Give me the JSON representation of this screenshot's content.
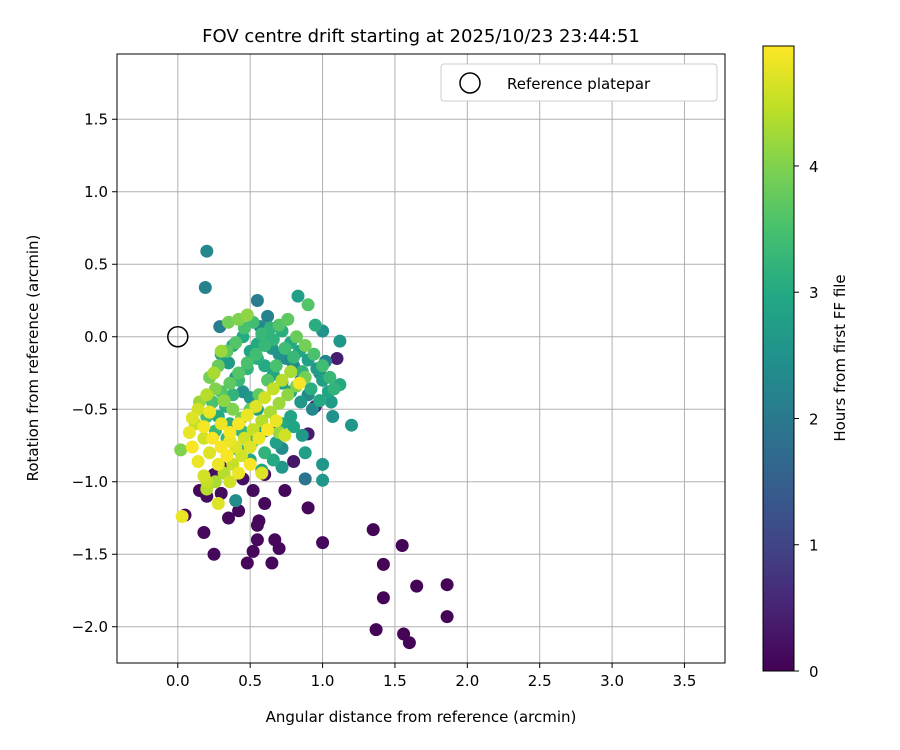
{
  "chart_data": {
    "type": "scatter",
    "title": "FOV centre drift starting at 2025/10/23 23:44:51",
    "xlabel": "Angular distance from reference (arcmin)",
    "ylabel": "Rotation from reference (arcmin)",
    "xlim": [
      -0.42,
      3.78
    ],
    "ylim": [
      -2.25,
      1.95
    ],
    "xticks": [
      0.0,
      0.5,
      1.0,
      1.5,
      2.0,
      2.5,
      3.0,
      3.5
    ],
    "xtick_labels": [
      "0.0",
      "0.5",
      "1.0",
      "1.5",
      "2.0",
      "2.5",
      "3.0",
      "3.5"
    ],
    "yticks": [
      -2.0,
      -1.5,
      -1.0,
      -0.5,
      0.0,
      0.5,
      1.0,
      1.5
    ],
    "ytick_labels": [
      "−2.0",
      "−1.5",
      "−1.0",
      "−0.5",
      "0.0",
      "0.5",
      "1.0",
      "1.5"
    ],
    "grid": true,
    "legend": {
      "placement": "top-right",
      "entries": [
        "Reference platepar"
      ]
    },
    "reference": {
      "x": 0.0,
      "y": 0.0
    },
    "colorbar": {
      "label": "Hours from first FF file",
      "colormap": "viridis",
      "range": [
        0,
        4.95
      ],
      "ticks": [
        0,
        1,
        2,
        3,
        4
      ],
      "tick_labels": [
        "0",
        "1",
        "2",
        "3",
        "4"
      ]
    },
    "points": [
      [
        1.35,
        -1.33,
        0.05
      ],
      [
        1.55,
        -1.44,
        0.05
      ],
      [
        1.42,
        -1.57,
        0.05
      ],
      [
        1.65,
        -1.72,
        0.05
      ],
      [
        1.86,
        -1.71,
        0.05
      ],
      [
        1.42,
        -1.8,
        0.05
      ],
      [
        1.86,
        -1.93,
        0.05
      ],
      [
        1.37,
        -2.02,
        0.05
      ],
      [
        1.56,
        -2.05,
        0.05
      ],
      [
        1.6,
        -2.11,
        0.05
      ],
      [
        0.05,
        -1.23,
        0.1
      ],
      [
        0.15,
        -1.06,
        0.1
      ],
      [
        0.18,
        -1.35,
        0.1
      ],
      [
        0.25,
        -1.5,
        0.1
      ],
      [
        0.35,
        -1.25,
        0.1
      ],
      [
        0.42,
        -1.2,
        0.1
      ],
      [
        0.48,
        -1.56,
        0.1
      ],
      [
        0.52,
        -1.48,
        0.1
      ],
      [
        0.55,
        -1.4,
        0.1
      ],
      [
        0.56,
        -1.27,
        0.1
      ],
      [
        0.55,
        -1.3,
        0.1
      ],
      [
        0.65,
        -1.56,
        0.1
      ],
      [
        0.7,
        -1.46,
        0.1
      ],
      [
        0.67,
        -1.4,
        0.1
      ],
      [
        0.6,
        -1.15,
        0.1
      ],
      [
        0.74,
        -1.06,
        0.1
      ],
      [
        0.9,
        -1.18,
        0.1
      ],
      [
        1.0,
        -1.42,
        0.1
      ],
      [
        0.52,
        -1.06,
        0.15
      ],
      [
        0.3,
        -1.08,
        0.15
      ],
      [
        0.2,
        -1.1,
        0.15
      ],
      [
        0.25,
        -0.95,
        0.2
      ],
      [
        0.3,
        -0.9,
        0.2
      ],
      [
        0.45,
        -0.98,
        0.2
      ],
      [
        0.6,
        -0.95,
        0.2
      ],
      [
        0.8,
        -0.86,
        0.3
      ],
      [
        0.7,
        -0.62,
        0.4
      ],
      [
        0.9,
        -0.67,
        0.4
      ],
      [
        1.1,
        -0.15,
        0.4
      ],
      [
        0.95,
        -0.48,
        0.5
      ],
      [
        0.88,
        -0.98,
        1.9
      ],
      [
        1.0,
        -0.99,
        2.6
      ],
      [
        1.0,
        -0.88,
        2.6
      ],
      [
        0.4,
        -1.13,
        2.4
      ],
      [
        0.72,
        -0.77,
        2.4
      ],
      [
        0.72,
        -0.9,
        2.6
      ],
      [
        0.2,
        0.59,
        2.3
      ],
      [
        0.19,
        0.34,
        2.2
      ],
      [
        0.29,
        0.07,
        2.1
      ],
      [
        0.55,
        0.25,
        2.1
      ],
      [
        0.62,
        0.14,
        2.2
      ],
      [
        0.57,
        0.07,
        2.3
      ],
      [
        0.83,
        0.28,
        2.8
      ],
      [
        0.9,
        0.22,
        3.6
      ],
      [
        0.95,
        0.08,
        3.1
      ],
      [
        1.0,
        0.04,
        2.5
      ],
      [
        1.12,
        -0.03,
        2.6
      ],
      [
        1.2,
        -0.61,
        2.6
      ],
      [
        1.07,
        -0.55,
        2.5
      ],
      [
        1.12,
        -0.33,
        3.0
      ],
      [
        1.06,
        -0.45,
        2.7
      ],
      [
        1.02,
        -0.17,
        2.2
      ],
      [
        0.98,
        -0.25,
        2.4
      ],
      [
        0.93,
        -0.5,
        2.3
      ],
      [
        0.86,
        -0.68,
        2.7
      ],
      [
        0.88,
        -0.8,
        2.8
      ],
      [
        0.8,
        -0.62,
        2.9
      ],
      [
        0.78,
        -0.55,
        2.9
      ],
      [
        0.72,
        -0.6,
        3.0
      ],
      [
        0.68,
        -0.73,
        2.8
      ],
      [
        0.6,
        -0.65,
        2.8
      ],
      [
        0.55,
        -0.5,
        2.7
      ],
      [
        0.5,
        -0.42,
        2.6
      ],
      [
        0.45,
        -0.38,
        2.5
      ],
      [
        0.4,
        -0.28,
        2.6
      ],
      [
        0.35,
        -0.18,
        2.7
      ],
      [
        0.3,
        -0.12,
        2.8
      ],
      [
        0.38,
        -0.06,
        2.9
      ],
      [
        0.45,
        0.0,
        3.0
      ],
      [
        0.5,
        -0.1,
        2.9
      ],
      [
        0.55,
        -0.05,
        3.0
      ],
      [
        0.6,
        0.0,
        2.8
      ],
      [
        0.65,
        -0.08,
        2.6
      ],
      [
        0.7,
        -0.12,
        2.5
      ],
      [
        0.75,
        -0.15,
        2.4
      ],
      [
        0.8,
        -0.2,
        2.3
      ],
      [
        0.85,
        -0.3,
        2.2
      ],
      [
        0.9,
        -0.4,
        2.3
      ],
      [
        0.85,
        -0.45,
        2.6
      ],
      [
        0.78,
        -0.38,
        2.7
      ],
      [
        0.72,
        -0.32,
        2.8
      ],
      [
        0.66,
        -0.26,
        2.9
      ],
      [
        0.6,
        -0.2,
        3.0
      ],
      [
        0.55,
        -0.15,
        3.1
      ],
      [
        0.48,
        -0.22,
        3.2
      ],
      [
        0.42,
        -0.3,
        3.3
      ],
      [
        0.38,
        -0.4,
        3.2
      ],
      [
        0.33,
        -0.48,
        3.1
      ],
      [
        0.28,
        -0.55,
        3.0
      ],
      [
        0.36,
        -0.6,
        3.1
      ],
      [
        0.44,
        -0.65,
        3.2
      ],
      [
        0.52,
        -0.72,
        3.3
      ],
      [
        0.6,
        -0.8,
        3.2
      ],
      [
        0.66,
        -0.85,
        3.0
      ],
      [
        0.58,
        -0.92,
        2.9
      ],
      [
        0.5,
        -0.85,
        3.0
      ],
      [
        0.42,
        -0.78,
        3.1
      ],
      [
        0.34,
        -0.7,
        3.2
      ],
      [
        0.26,
        -0.65,
        3.3
      ],
      [
        0.2,
        -0.55,
        3.4
      ],
      [
        0.24,
        -0.45,
        3.5
      ],
      [
        0.3,
        -0.38,
        3.6
      ],
      [
        0.36,
        -0.32,
        3.7
      ],
      [
        0.42,
        -0.25,
        3.6
      ],
      [
        0.48,
        -0.18,
        3.5
      ],
      [
        0.54,
        -0.12,
        3.4
      ],
      [
        0.6,
        -0.06,
        3.3
      ],
      [
        0.66,
        -0.02,
        3.2
      ],
      [
        0.72,
        0.04,
        3.1
      ],
      [
        0.78,
        -0.04,
        3.0
      ],
      [
        0.84,
        -0.1,
        2.9
      ],
      [
        0.9,
        -0.16,
        2.8
      ],
      [
        0.96,
        -0.22,
        2.7
      ],
      [
        1.0,
        -0.3,
        2.8
      ],
      [
        1.04,
        -0.38,
        2.9
      ],
      [
        0.98,
        -0.44,
        3.0
      ],
      [
        0.92,
        -0.36,
        3.1
      ],
      [
        0.86,
        -0.24,
        3.2
      ],
      [
        0.8,
        -0.14,
        3.3
      ],
      [
        0.74,
        -0.08,
        3.4
      ],
      [
        0.68,
        -0.2,
        3.5
      ],
      [
        0.62,
        -0.3,
        3.6
      ],
      [
        0.56,
        -0.4,
        3.7
      ],
      [
        0.5,
        -0.5,
        3.8
      ],
      [
        0.44,
        -0.56,
        3.9
      ],
      [
        0.38,
        -0.5,
        4.0
      ],
      [
        0.32,
        -0.44,
        4.1
      ],
      [
        0.26,
        -0.36,
        4.0
      ],
      [
        0.22,
        -0.28,
        3.9
      ],
      [
        0.28,
        -0.2,
        3.8
      ],
      [
        0.34,
        -0.1,
        3.7
      ],
      [
        0.4,
        -0.04,
        3.6
      ],
      [
        0.46,
        0.06,
        3.5
      ],
      [
        0.52,
        0.1,
        3.4
      ],
      [
        0.58,
        0.02,
        3.3
      ],
      [
        0.64,
        0.06,
        3.2
      ],
      [
        0.7,
        0.08,
        3.6
      ],
      [
        0.76,
        0.12,
        3.7
      ],
      [
        0.82,
        0.0,
        3.8
      ],
      [
        0.88,
        -0.06,
        3.9
      ],
      [
        0.94,
        -0.12,
        3.5
      ],
      [
        1.0,
        -0.2,
        3.4
      ],
      [
        1.05,
        -0.28,
        3.3
      ],
      [
        1.08,
        -0.36,
        3.2
      ],
      [
        0.35,
        0.1,
        3.9
      ],
      [
        0.42,
        0.12,
        4.0
      ],
      [
        0.48,
        0.15,
        4.1
      ],
      [
        0.3,
        -0.1,
        4.2
      ],
      [
        0.25,
        -0.25,
        4.3
      ],
      [
        0.2,
        -0.4,
        4.4
      ],
      [
        0.15,
        -0.45,
        4.2
      ],
      [
        0.12,
        -0.6,
        4.5
      ],
      [
        0.18,
        -0.7,
        4.6
      ],
      [
        0.22,
        -0.8,
        4.7
      ],
      [
        0.28,
        -0.88,
        4.8
      ],
      [
        0.34,
        -0.82,
        4.9
      ],
      [
        0.4,
        -0.76,
        4.7
      ],
      [
        0.46,
        -0.7,
        4.6
      ],
      [
        0.52,
        -0.64,
        4.5
      ],
      [
        0.58,
        -0.58,
        4.4
      ],
      [
        0.64,
        -0.52,
        4.3
      ],
      [
        0.7,
        -0.46,
        4.2
      ],
      [
        0.76,
        -0.4,
        4.1
      ],
      [
        0.82,
        -0.34,
        4.0
      ],
      [
        0.88,
        -0.28,
        3.9
      ],
      [
        0.7,
        -0.66,
        4.2
      ],
      [
        0.74,
        -0.68,
        4.6
      ],
      [
        0.68,
        -0.58,
        4.8
      ],
      [
        0.62,
        -0.64,
        4.9
      ],
      [
        0.56,
        -0.7,
        4.8
      ],
      [
        0.5,
        -0.76,
        4.7
      ],
      [
        0.44,
        -0.82,
        4.6
      ],
      [
        0.38,
        -0.88,
        4.5
      ],
      [
        0.32,
        -0.94,
        4.4
      ],
      [
        0.26,
        -1.0,
        4.3
      ],
      [
        0.2,
        -1.05,
        4.4
      ],
      [
        0.18,
        -0.96,
        4.6
      ],
      [
        0.14,
        -0.86,
        4.8
      ],
      [
        0.1,
        -0.76,
        4.9
      ],
      [
        0.08,
        -0.66,
        4.8
      ],
      [
        0.1,
        -0.56,
        4.7
      ],
      [
        0.14,
        -0.5,
        4.6
      ],
      [
        0.02,
        -0.78,
        4.0
      ],
      [
        0.03,
        -1.24,
        4.8
      ],
      [
        0.28,
        -1.15,
        4.7
      ],
      [
        0.2,
        -1.0,
        4.5
      ],
      [
        0.36,
        -1.0,
        4.6
      ],
      [
        0.42,
        -0.94,
        4.8
      ],
      [
        0.5,
        -0.88,
        4.9
      ],
      [
        0.58,
        -0.94,
        4.7
      ],
      [
        0.84,
        -0.32,
        4.9
      ],
      [
        0.3,
        -0.6,
        4.8
      ],
      [
        0.36,
        -0.66,
        4.9
      ],
      [
        0.42,
        -0.6,
        4.9
      ],
      [
        0.48,
        -0.54,
        4.8
      ],
      [
        0.54,
        -0.48,
        4.7
      ],
      [
        0.6,
        -0.42,
        4.6
      ],
      [
        0.66,
        -0.36,
        4.5
      ],
      [
        0.72,
        -0.3,
        4.4
      ],
      [
        0.78,
        -0.24,
        4.3
      ],
      [
        0.24,
        -0.7,
        4.9
      ],
      [
        0.3,
        -0.76,
        4.9
      ],
      [
        0.36,
        -0.72,
        4.8
      ],
      [
        0.18,
        -0.62,
        4.9
      ],
      [
        0.22,
        -0.52,
        4.8
      ]
    ]
  }
}
